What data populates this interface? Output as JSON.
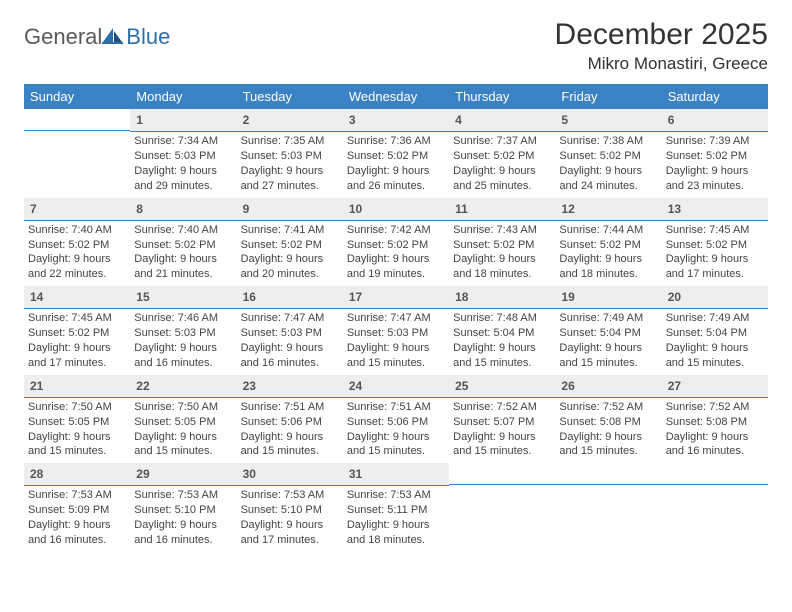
{
  "brand": {
    "part1": "General",
    "part2": "Blue"
  },
  "header": {
    "title": "December 2025",
    "location": "Mikro Monastiri, Greece"
  },
  "colors": {
    "header_bg": "#3b82c4",
    "header_text": "#ffffff",
    "daynum_bg": "#eeeeee",
    "daynum_border": "#3b82c4",
    "body_text": "#444444",
    "page_bg": "#ffffff",
    "logo_gray": "#5a5a5a",
    "logo_blue": "#2f6fa8"
  },
  "weekdays": [
    "Sunday",
    "Monday",
    "Tuesday",
    "Wednesday",
    "Thursday",
    "Friday",
    "Saturday"
  ],
  "grid": [
    [
      null,
      {
        "d": "1",
        "sr": "Sunrise: 7:34 AM",
        "ss": "Sunset: 5:03 PM",
        "dl": "Daylight: 9 hours and 29 minutes."
      },
      {
        "d": "2",
        "sr": "Sunrise: 7:35 AM",
        "ss": "Sunset: 5:03 PM",
        "dl": "Daylight: 9 hours and 27 minutes."
      },
      {
        "d": "3",
        "sr": "Sunrise: 7:36 AM",
        "ss": "Sunset: 5:02 PM",
        "dl": "Daylight: 9 hours and 26 minutes."
      },
      {
        "d": "4",
        "sr": "Sunrise: 7:37 AM",
        "ss": "Sunset: 5:02 PM",
        "dl": "Daylight: 9 hours and 25 minutes."
      },
      {
        "d": "5",
        "sr": "Sunrise: 7:38 AM",
        "ss": "Sunset: 5:02 PM",
        "dl": "Daylight: 9 hours and 24 minutes."
      },
      {
        "d": "6",
        "sr": "Sunrise: 7:39 AM",
        "ss": "Sunset: 5:02 PM",
        "dl": "Daylight: 9 hours and 23 minutes."
      }
    ],
    [
      {
        "d": "7",
        "sr": "Sunrise: 7:40 AM",
        "ss": "Sunset: 5:02 PM",
        "dl": "Daylight: 9 hours and 22 minutes."
      },
      {
        "d": "8",
        "sr": "Sunrise: 7:40 AM",
        "ss": "Sunset: 5:02 PM",
        "dl": "Daylight: 9 hours and 21 minutes."
      },
      {
        "d": "9",
        "sr": "Sunrise: 7:41 AM",
        "ss": "Sunset: 5:02 PM",
        "dl": "Daylight: 9 hours and 20 minutes."
      },
      {
        "d": "10",
        "sr": "Sunrise: 7:42 AM",
        "ss": "Sunset: 5:02 PM",
        "dl": "Daylight: 9 hours and 19 minutes."
      },
      {
        "d": "11",
        "sr": "Sunrise: 7:43 AM",
        "ss": "Sunset: 5:02 PM",
        "dl": "Daylight: 9 hours and 18 minutes."
      },
      {
        "d": "12",
        "sr": "Sunrise: 7:44 AM",
        "ss": "Sunset: 5:02 PM",
        "dl": "Daylight: 9 hours and 18 minutes."
      },
      {
        "d": "13",
        "sr": "Sunrise: 7:45 AM",
        "ss": "Sunset: 5:02 PM",
        "dl": "Daylight: 9 hours and 17 minutes."
      }
    ],
    [
      {
        "d": "14",
        "sr": "Sunrise: 7:45 AM",
        "ss": "Sunset: 5:02 PM",
        "dl": "Daylight: 9 hours and 17 minutes."
      },
      {
        "d": "15",
        "sr": "Sunrise: 7:46 AM",
        "ss": "Sunset: 5:03 PM",
        "dl": "Daylight: 9 hours and 16 minutes."
      },
      {
        "d": "16",
        "sr": "Sunrise: 7:47 AM",
        "ss": "Sunset: 5:03 PM",
        "dl": "Daylight: 9 hours and 16 minutes."
      },
      {
        "d": "17",
        "sr": "Sunrise: 7:47 AM",
        "ss": "Sunset: 5:03 PM",
        "dl": "Daylight: 9 hours and 15 minutes."
      },
      {
        "d": "18",
        "sr": "Sunrise: 7:48 AM",
        "ss": "Sunset: 5:04 PM",
        "dl": "Daylight: 9 hours and 15 minutes."
      },
      {
        "d": "19",
        "sr": "Sunrise: 7:49 AM",
        "ss": "Sunset: 5:04 PM",
        "dl": "Daylight: 9 hours and 15 minutes."
      },
      {
        "d": "20",
        "sr": "Sunrise: 7:49 AM",
        "ss": "Sunset: 5:04 PM",
        "dl": "Daylight: 9 hours and 15 minutes."
      }
    ],
    [
      {
        "d": "21",
        "sr": "Sunrise: 7:50 AM",
        "ss": "Sunset: 5:05 PM",
        "dl": "Daylight: 9 hours and 15 minutes."
      },
      {
        "d": "22",
        "sr": "Sunrise: 7:50 AM",
        "ss": "Sunset: 5:05 PM",
        "dl": "Daylight: 9 hours and 15 minutes."
      },
      {
        "d": "23",
        "sr": "Sunrise: 7:51 AM",
        "ss": "Sunset: 5:06 PM",
        "dl": "Daylight: 9 hours and 15 minutes."
      },
      {
        "d": "24",
        "sr": "Sunrise: 7:51 AM",
        "ss": "Sunset: 5:06 PM",
        "dl": "Daylight: 9 hours and 15 minutes."
      },
      {
        "d": "25",
        "sr": "Sunrise: 7:52 AM",
        "ss": "Sunset: 5:07 PM",
        "dl": "Daylight: 9 hours and 15 minutes."
      },
      {
        "d": "26",
        "sr": "Sunrise: 7:52 AM",
        "ss": "Sunset: 5:08 PM",
        "dl": "Daylight: 9 hours and 15 minutes."
      },
      {
        "d": "27",
        "sr": "Sunrise: 7:52 AM",
        "ss": "Sunset: 5:08 PM",
        "dl": "Daylight: 9 hours and 16 minutes."
      }
    ],
    [
      {
        "d": "28",
        "sr": "Sunrise: 7:53 AM",
        "ss": "Sunset: 5:09 PM",
        "dl": "Daylight: 9 hours and 16 minutes."
      },
      {
        "d": "29",
        "sr": "Sunrise: 7:53 AM",
        "ss": "Sunset: 5:10 PM",
        "dl": "Daylight: 9 hours and 16 minutes."
      },
      {
        "d": "30",
        "sr": "Sunrise: 7:53 AM",
        "ss": "Sunset: 5:10 PM",
        "dl": "Daylight: 9 hours and 17 minutes."
      },
      {
        "d": "31",
        "sr": "Sunrise: 7:53 AM",
        "ss": "Sunset: 5:11 PM",
        "dl": "Daylight: 9 hours and 18 minutes."
      },
      null,
      null,
      null
    ]
  ]
}
